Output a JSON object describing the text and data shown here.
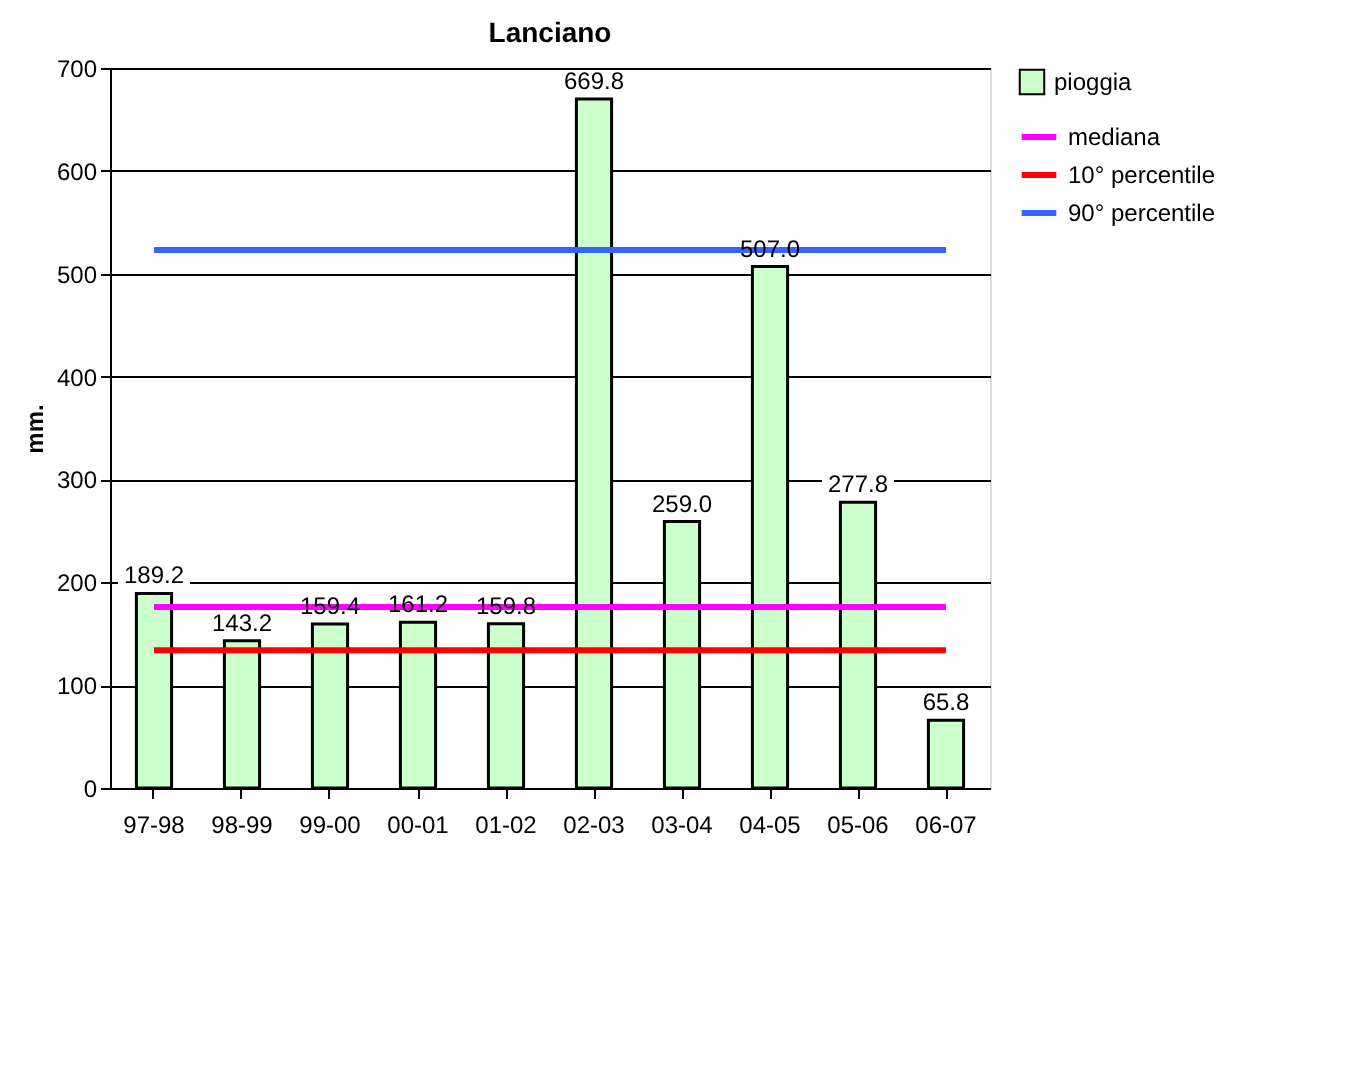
{
  "chart_data": {
    "type": "bar",
    "title": "Lanciano",
    "ylabel": "mm.",
    "categories": [
      "97-98",
      "98-99",
      "99-00",
      "00-01",
      "01-02",
      "02-03",
      "03-04",
      "04-05",
      "05-06",
      "06-07"
    ],
    "series": [
      {
        "name": "pioggia",
        "color": "#ccffcc",
        "values": [
          189.2,
          143.2,
          159.4,
          161.2,
          159.8,
          669.8,
          259.0,
          507.0,
          277.8,
          65.8
        ],
        "value_labels": [
          "189.2",
          "143.2",
          "159.4",
          "161.2",
          "159.8",
          "669.8",
          "259.0",
          "507.0",
          "277.8",
          "65.8"
        ]
      },
      {
        "name": "mediana",
        "type": "line",
        "color": "#ff00ff",
        "values": [
          176,
          176,
          176,
          176,
          176,
          176,
          176,
          176,
          176,
          176
        ]
      },
      {
        "name": "10° percentile",
        "type": "line",
        "color": "#ff0000",
        "values": [
          134,
          134,
          134,
          134,
          134,
          134,
          134,
          134,
          134,
          134
        ]
      },
      {
        "name": "90° percentile",
        "type": "line",
        "color": "#3366ff",
        "values": [
          523,
          523,
          523,
          523,
          523,
          523,
          523,
          523,
          523,
          523
        ]
      }
    ],
    "ylim": [
      0,
      700
    ],
    "yticks": [
      0,
      100,
      200,
      300,
      400,
      500,
      600,
      700
    ],
    "grid": "y",
    "legend": "right",
    "marker": "none",
    "line_style": "solid"
  }
}
